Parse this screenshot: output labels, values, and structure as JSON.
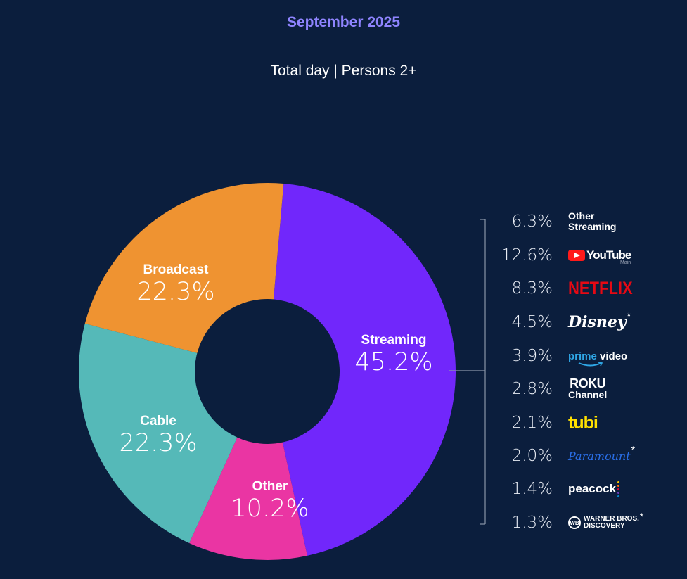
{
  "header": {
    "title": "September 2025",
    "subtitle": "Total day | Persons 2+"
  },
  "chart_data": {
    "type": "pie",
    "title": "September 2025",
    "subtitle": "Total day | Persons 2+",
    "donut": true,
    "slices": [
      {
        "label": "Streaming",
        "value": 45.2,
        "display": "45.2%",
        "color": "#7127fb"
      },
      {
        "label": "Other",
        "value": 10.2,
        "display": "10.2%",
        "color": "#ea35a3"
      },
      {
        "label": "Cable",
        "value": 22.3,
        "display": "22.3%",
        "color": "#55b9b8"
      },
      {
        "label": "Broadcast",
        "value": 22.3,
        "display": "22.3%",
        "color": "#ef9331"
      }
    ],
    "streaming_breakdown": [
      {
        "name": "Other Streaming",
        "value": 6.3,
        "display": "6.3%",
        "icon": "other-streaming-logo"
      },
      {
        "name": "YouTube Main",
        "value": 12.6,
        "display": "12.6%",
        "icon": "youtube-logo"
      },
      {
        "name": "Netflix",
        "value": 8.3,
        "display": "8.3%",
        "icon": "netflix-logo"
      },
      {
        "name": "Disney*",
        "value": 4.5,
        "display": "4.5%",
        "icon": "disney-logo"
      },
      {
        "name": "Prime Video",
        "value": 3.9,
        "display": "3.9%",
        "icon": "prime-video-logo"
      },
      {
        "name": "Roku Channel",
        "value": 2.8,
        "display": "2.8%",
        "icon": "roku-channel-logo"
      },
      {
        "name": "Tubi",
        "value": 2.1,
        "display": "2.1%",
        "icon": "tubi-logo"
      },
      {
        "name": "Paramount*",
        "value": 2.0,
        "display": "2.0%",
        "icon": "paramount-logo"
      },
      {
        "name": "Peacock",
        "value": 1.4,
        "display": "1.4%",
        "icon": "peacock-logo"
      },
      {
        "name": "Warner Bros. Discovery*",
        "value": 1.3,
        "display": "1.3%",
        "icon": "warner-bros-discovery-logo"
      }
    ]
  },
  "logos": {
    "other_line1": "Other",
    "other_line2": "Streaming",
    "youtube_text": "YouTube",
    "youtube_sub": "Main",
    "netflix": "NETFLIX",
    "disney": "Disney",
    "asterisk": "*",
    "prime_1": "prime",
    "prime_2": "video",
    "roku_1": "ROKU",
    "roku_2": "Channel",
    "tubi": "tubi",
    "paramount": "Paramount",
    "peacock": "peacock",
    "wb_shield": "WB",
    "wb_1": "WARNER BROS.",
    "wb_2": "DISCOVERY"
  },
  "colors": {
    "background": "#0b1e3d",
    "title": "#8f84ff",
    "bracket": "#8a95a8"
  }
}
